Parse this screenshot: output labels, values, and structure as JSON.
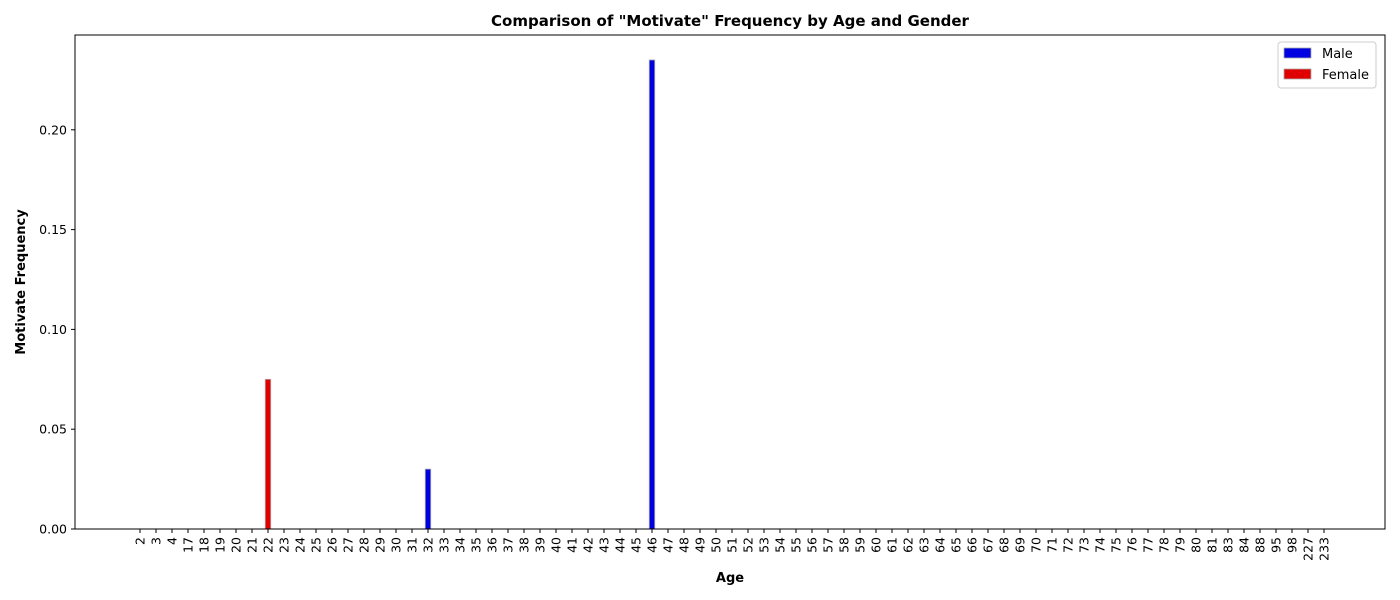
{
  "chart_data": {
    "type": "bar",
    "title": "Comparison of \"Motivate\" Frequency by Age and Gender",
    "xlabel": "Age",
    "ylabel": "Motivate Frequency",
    "categories": [
      "2",
      "3",
      "4",
      "17",
      "18",
      "19",
      "20",
      "21",
      "22",
      "23",
      "24",
      "25",
      "26",
      "27",
      "28",
      "29",
      "30",
      "31",
      "32",
      "33",
      "34",
      "35",
      "36",
      "37",
      "38",
      "39",
      "40",
      "41",
      "42",
      "43",
      "44",
      "45",
      "46",
      "47",
      "48",
      "49",
      "50",
      "51",
      "52",
      "53",
      "54",
      "55",
      "56",
      "57",
      "58",
      "59",
      "60",
      "61",
      "62",
      "63",
      "64",
      "65",
      "66",
      "67",
      "68",
      "69",
      "70",
      "71",
      "72",
      "73",
      "74",
      "75",
      "76",
      "77",
      "78",
      "79",
      "80",
      "81",
      "83",
      "84",
      "88",
      "95",
      "98",
      "227",
      "233"
    ],
    "ylim": [
      0,
      0.2475
    ],
    "yticks": [
      "0.00",
      "0.05",
      "0.10",
      "0.15",
      "0.20"
    ],
    "grid": false,
    "legend_position": "top-right",
    "series": [
      {
        "name": "Male",
        "color": "#0000e0",
        "values": [
          0,
          0,
          0,
          0,
          0,
          0,
          0,
          0,
          0,
          0,
          0,
          0,
          0,
          0,
          0,
          0,
          0,
          0,
          0.03,
          0,
          0,
          0,
          0,
          0,
          0,
          0,
          0,
          0,
          0,
          0,
          0,
          0,
          0.235,
          0,
          0,
          0,
          0,
          0,
          0,
          0,
          0,
          0,
          0,
          0,
          0,
          0,
          0,
          0,
          0,
          0,
          0,
          0,
          0,
          0,
          0,
          0,
          0,
          0,
          0,
          0,
          0,
          0,
          0,
          0,
          0,
          0,
          0,
          0,
          0,
          0,
          0,
          0,
          0,
          0,
          0
        ]
      },
      {
        "name": "Female",
        "color": "#e00000",
        "values": [
          0,
          0,
          0,
          0,
          0,
          0,
          0,
          0,
          0.075,
          0,
          0,
          0,
          0,
          0,
          0,
          0,
          0,
          0,
          0,
          0,
          0,
          0,
          0,
          0,
          0,
          0,
          0,
          0,
          0,
          0,
          0,
          0,
          0,
          0,
          0,
          0,
          0,
          0,
          0,
          0,
          0,
          0,
          0,
          0,
          0,
          0,
          0,
          0,
          0,
          0,
          0,
          0,
          0,
          0,
          0,
          0,
          0,
          0,
          0,
          0,
          0,
          0,
          0,
          0,
          0,
          0,
          0,
          0,
          0,
          0,
          0,
          0,
          0,
          0,
          0
        ]
      }
    ]
  }
}
